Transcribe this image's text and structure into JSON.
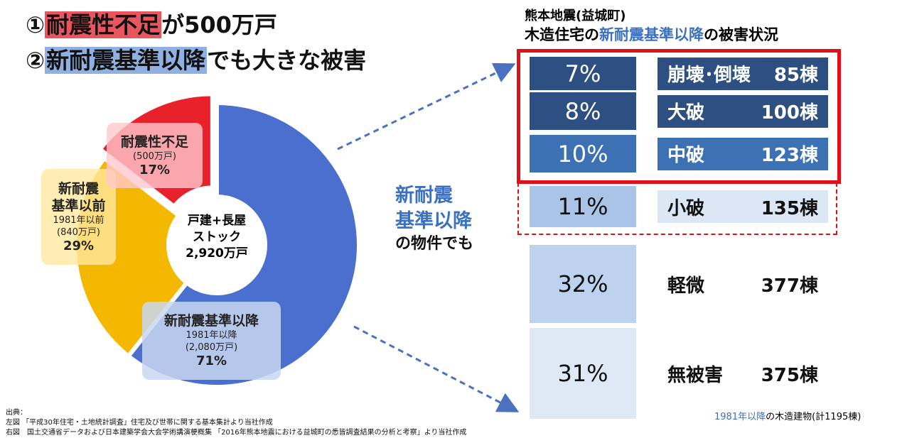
{
  "headline": [
    {
      "num": "①",
      "highlight": "耐震性不足",
      "rest": "が500万戸"
    },
    {
      "num": "②",
      "highlight": "新耐震基準以降",
      "rest": "でも大きな被害"
    }
  ],
  "chart_data": {
    "type": "pie",
    "donut": true,
    "center_label": [
      "戸建+長屋",
      "ストック",
      "2,920万戸"
    ],
    "labels": [
      {
        "lines": [
          "新耐震基準以降"
        ],
        "year": "1981年以降",
        "units": "(2,080万戸)"
      },
      {
        "lines": [
          "新耐震",
          "基準以前"
        ],
        "year": "1981年以前",
        "units": "(840万戸)"
      },
      {
        "lines": [
          "耐震性不足"
        ],
        "units": "(500万戸)"
      }
    ],
    "values": [
      71,
      29,
      17
    ],
    "value_labels": [
      "71%",
      "29%",
      "17%"
    ],
    "colors": [
      "#4a6fcf",
      "#f5b800",
      "#e8212b"
    ]
  },
  "middle_note": {
    "highlight": [
      "新耐震",
      "基準以降"
    ],
    "rest": "の物件でも"
  },
  "panel": {
    "title": "熊本地震(益城町)",
    "subtitle": {
      "pre": "木造住宅の",
      "highlight": "新耐震基準以降",
      "post": "の被害状況"
    },
    "rows": [
      {
        "share": "7%",
        "level": "崩壊･倒壊",
        "count": "85棟"
      },
      {
        "share": "8%",
        "level": "大破",
        "count": "100棟"
      },
      {
        "share": "10%",
        "level": "中破",
        "count": "123棟"
      },
      {
        "share": "11%",
        "level": "小破",
        "count": "135棟"
      },
      {
        "share": "32%",
        "level": "軽微",
        "count": "377棟"
      },
      {
        "share": "31%",
        "level": "無被害",
        "count": "375棟"
      }
    ],
    "footer": {
      "highlight": "1981年以降",
      "rest": "の木造建物(計1195棟)"
    }
  },
  "sources": [
    "出典：",
    "左図 「平成30年住宅・土地統計調査」住宅及び世帯に関する基本集計より当社作成",
    "右図　国土交通省データおよび日本建築学会大会学術講演梗概集 「2016年熊本地震における益城町の悉皆調査結果の分析と考察」より当社作成"
  ]
}
